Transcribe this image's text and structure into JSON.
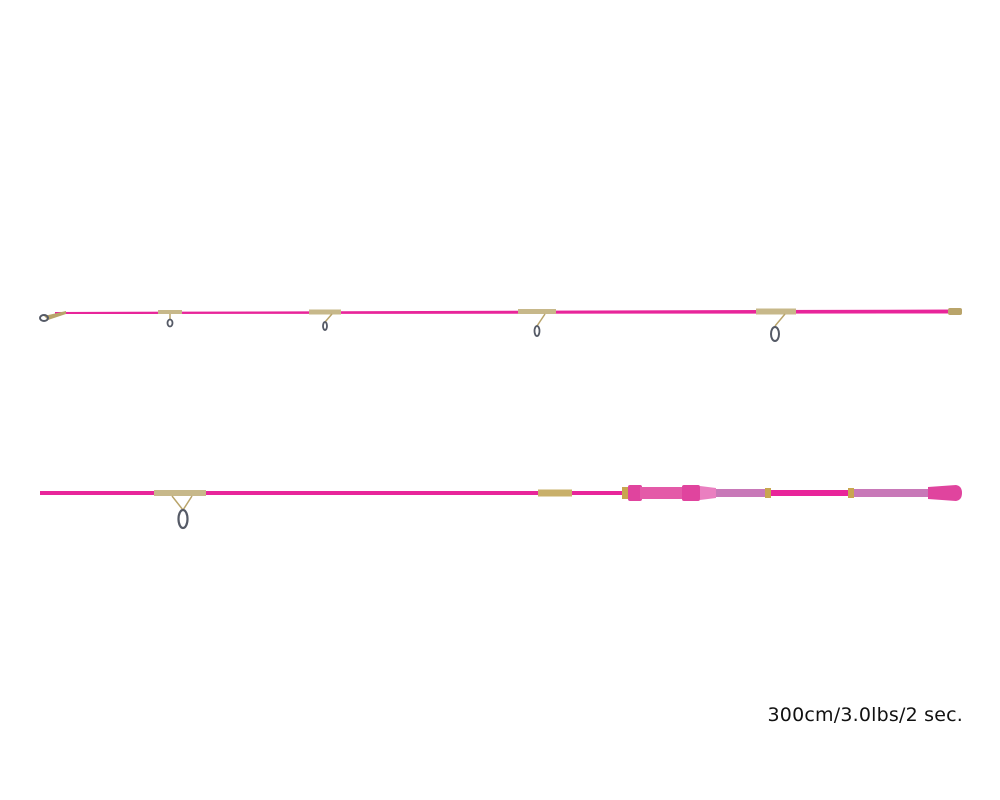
{
  "product": {
    "spec_label": "300cm/3.0lbs/2 sec.",
    "colors": {
      "blank": "#e8259a",
      "handle": "#e0449e",
      "butt": "#c878b8",
      "fittings": "#b9a46a",
      "ring": "#555a66"
    }
  }
}
